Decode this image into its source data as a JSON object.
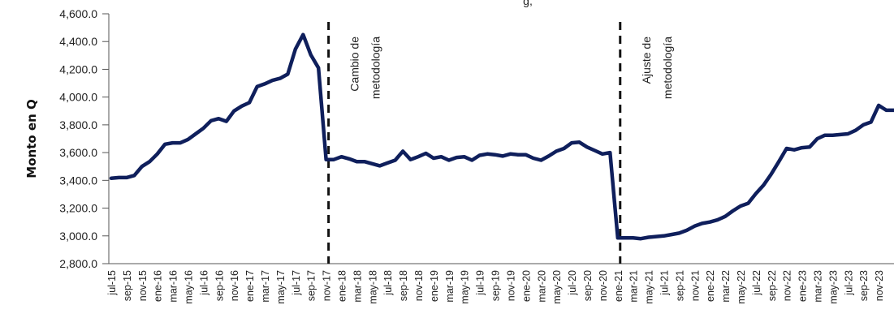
{
  "chart_data": {
    "type": "line",
    "title": "",
    "xlabel": "",
    "ylabel": "Monto en Q",
    "ylim": [
      2800,
      4600
    ],
    "y_ticks": [
      2800,
      3000,
      3200,
      3400,
      3600,
      3800,
      4000,
      4200,
      4400,
      4600
    ],
    "y_tick_labels": [
      "2,800.0",
      "3,000.0",
      "3,200.0",
      "3,400.0",
      "3,600.0",
      "3,800.0",
      "4,000.0",
      "4,200.0",
      "4,400.0",
      "4,600.0"
    ],
    "x_tick_labels": [
      "jul-15",
      "sep-15",
      "nov-15",
      "ene-16",
      "mar-16",
      "may-16",
      "jul-16",
      "sep-16",
      "nov-16",
      "ene-17",
      "mar-17",
      "may-17",
      "jul-17",
      "sep-17",
      "nov-17",
      "ene-18",
      "mar-18",
      "may-18",
      "jul-18",
      "sep-18",
      "nov-18",
      "ene-19",
      "mar-19",
      "may-19",
      "jul-19",
      "sep-19",
      "nov-19",
      "ene-20",
      "mar-20",
      "may-20",
      "jul-20",
      "sep-20",
      "nov-20",
      "ene-21",
      "mar-21",
      "may-21",
      "jul-21",
      "sep-21",
      "nov-21",
      "ene-22",
      "mar-22",
      "may-22",
      "jul-22",
      "sep-22",
      "nov-22",
      "ene-23",
      "mar-23",
      "may-23",
      "jul-23",
      "sep-23",
      "nov-23"
    ],
    "x_start": "jul-15",
    "line_color": "#0f1f5c",
    "values": [
      3415,
      3420,
      3420,
      3435,
      3500,
      3535,
      3590,
      3660,
      3670,
      3670,
      3695,
      3735,
      3775,
      3830,
      3845,
      3825,
      3900,
      3935,
      3960,
      4075,
      4095,
      4120,
      4135,
      4165,
      4345,
      4450,
      4305,
      4210,
      3550,
      3550,
      3570,
      3555,
      3535,
      3535,
      3520,
      3505,
      3525,
      3545,
      3610,
      3550,
      3570,
      3595,
      3560,
      3570,
      3545,
      3565,
      3570,
      3545,
      3580,
      3590,
      3585,
      3575,
      3590,
      3585,
      3585,
      3560,
      3545,
      3575,
      3610,
      3630,
      3670,
      3675,
      3640,
      3615,
      3590,
      3600,
      2985,
      2985,
      2985,
      2980,
      2990,
      2995,
      3000,
      3010,
      3020,
      3040,
      3070,
      3090,
      3100,
      3115,
      3140,
      3180,
      3215,
      3235,
      3305,
      3365,
      3445,
      3535,
      3630,
      3620,
      3635,
      3640,
      3700,
      3725,
      3725,
      3730,
      3735,
      3760,
      3800,
      3820,
      3940,
      3905,
      3905
    ],
    "annotations": [
      {
        "index": 28,
        "lines": [
          "Cambio de",
          "metodología"
        ]
      },
      {
        "index": 66,
        "lines": [
          "Ajuste de",
          "metodología"
        ]
      }
    ],
    "top_fragment": "g,"
  }
}
